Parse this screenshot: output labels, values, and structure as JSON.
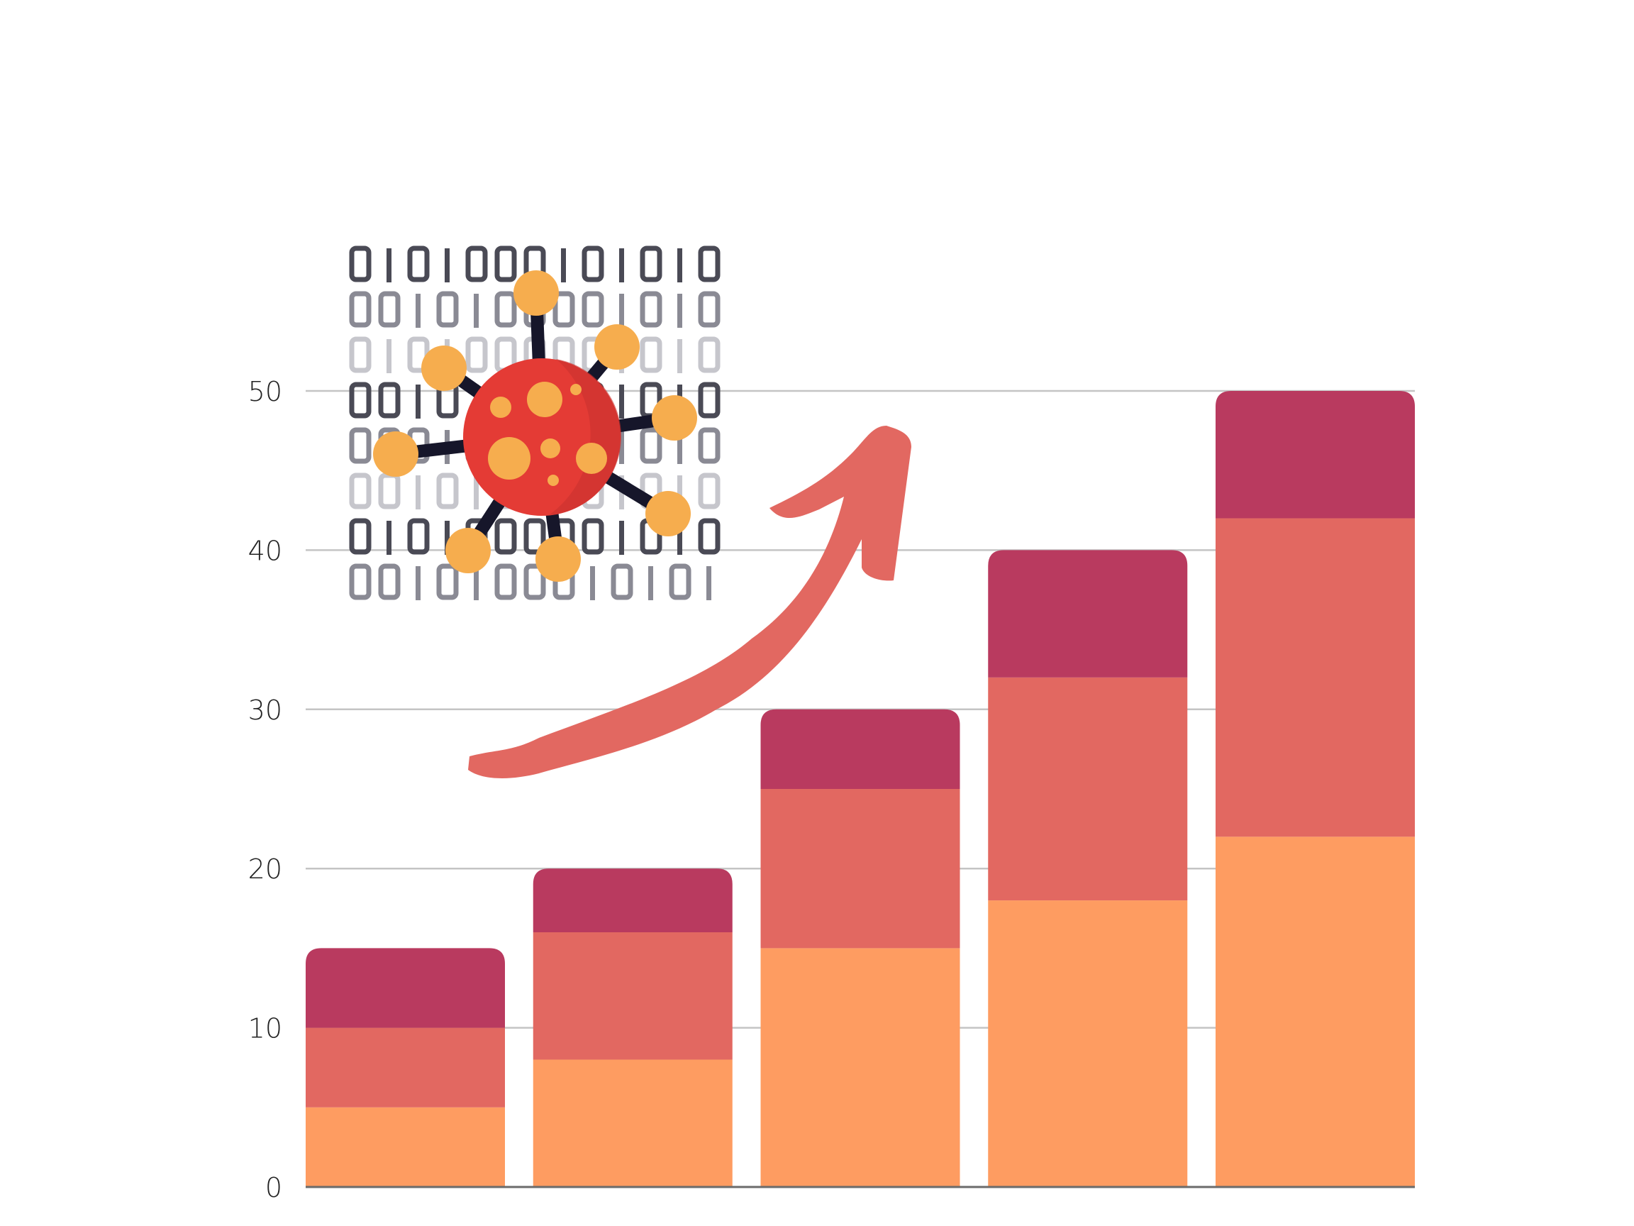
{
  "chart_data": {
    "type": "bar",
    "stacked": true,
    "categories": [
      "",
      "",
      "",
      "",
      ""
    ],
    "series": [
      {
        "values": [
          5,
          8,
          15,
          18,
          22
        ],
        "color": "#FE9C61"
      },
      {
        "values": [
          5,
          8,
          10,
          14,
          20
        ],
        "color": "#E26861"
      },
      {
        "values": [
          5,
          4,
          5,
          8,
          8
        ],
        "color": "#B93A5F"
      }
    ],
    "ylim": [
      0,
      50
    ],
    "yticks": [
      "0",
      "10",
      "20",
      "30",
      "40",
      "50"
    ],
    "grid": true,
    "title": "",
    "xlabel": "",
    "ylabel": "",
    "colors": {
      "grid": "#C4C4C4",
      "axis": "#6B6B6B",
      "arrow": "#E26861",
      "virus": "#E43B35",
      "node": "#F6AD4E",
      "binary": "#4A4A55"
    },
    "decorations": [
      "binary-data-virus-illustration",
      "trend-arrow-up-icon"
    ]
  }
}
